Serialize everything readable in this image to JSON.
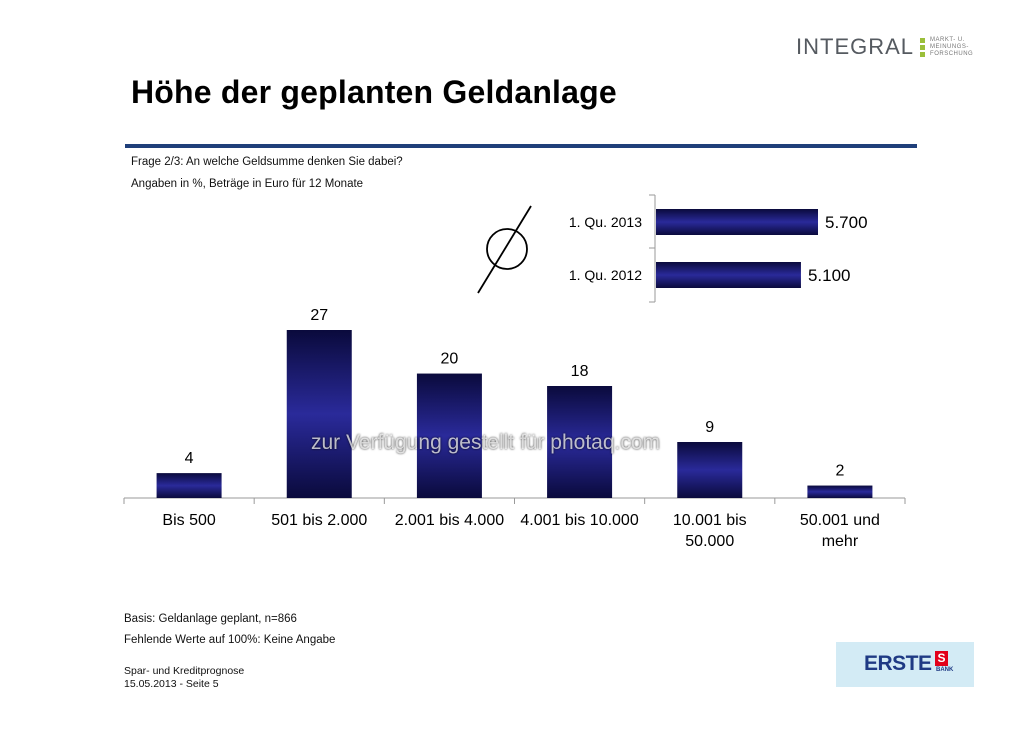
{
  "header": {
    "brand": {
      "word": "INTEGRAL",
      "sub": [
        "MARKT- U.",
        "MEINUNGS-",
        "FORSCHUNG"
      ]
    },
    "title": "Höhe der geplanten Geldanlage"
  },
  "question": "Frage 2/3: An welche Geldsumme denken Sie dabei?",
  "note": "Angaben in %, Beträge in Euro für 12 Monate",
  "colors": {
    "bar_dark": "#0a0a3c",
    "bar_light": "#2a2a9a",
    "rule": "#1f3f7a",
    "erste_bg": "#d3ebf5"
  },
  "chart_data": [
    {
      "type": "bar",
      "title": "Höhe der geplanten Geldanlage",
      "categories": [
        [
          "Bis 500"
        ],
        [
          "501 bis 2.000"
        ],
        [
          "2.001 bis 4.000"
        ],
        [
          "4.001 bis 10.000"
        ],
        [
          "10.001 bis",
          "50.000"
        ],
        [
          "50.001 und",
          "mehr"
        ]
      ],
      "values": [
        4,
        27,
        20,
        18,
        9,
        2
      ],
      "ylim": [
        0,
        27
      ],
      "xlabel": "",
      "ylabel": ""
    },
    {
      "type": "bar",
      "orientation": "horizontal",
      "symbol": "Ø",
      "categories": [
        "1. Qu. 2013",
        "1. Qu. 2012"
      ],
      "values": [
        5700,
        5100
      ],
      "value_labels": [
        "5.700",
        "5.100"
      ],
      "xlim": [
        0,
        5700
      ]
    }
  ],
  "watermark": "zur Verfügung gestellt für photaq.com",
  "footer": {
    "basis": "Basis: Geldanlage geplant, n=866",
    "missing": "Fehlende Werte auf 100%: Keine Angabe",
    "report": "Spar- und Kreditprognose",
    "date_page": "15.05.2013 - Seite 5"
  },
  "erste": {
    "word": "ERSTE",
    "mark": "S",
    "bank": "BANK"
  }
}
